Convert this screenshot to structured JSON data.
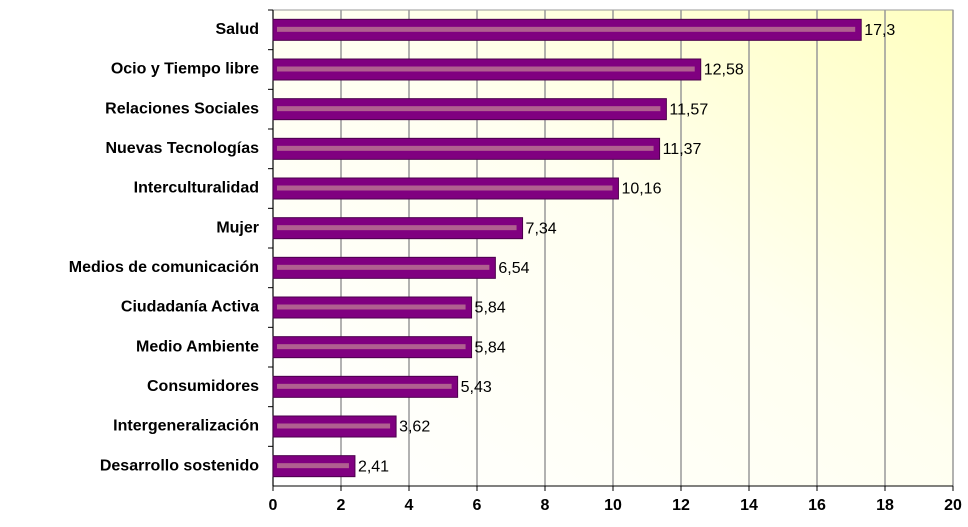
{
  "chart_data": {
    "type": "bar",
    "orientation": "horizontal",
    "categories": [
      "Salud",
      "Ocio y Tiempo libre",
      "Relaciones Sociales",
      "Nuevas Tecnologías",
      "Interculturalidad",
      "Mujer",
      "Medios de comunicación",
      "Ciudadanía Activa",
      "Medio Ambiente",
      "Consumidores",
      "Intergeneralización",
      "Desarrollo sostenido"
    ],
    "values": [
      17.3,
      12.58,
      11.57,
      11.37,
      10.16,
      7.34,
      6.54,
      5.84,
      5.84,
      5.43,
      3.62,
      2.41
    ],
    "value_labels": [
      "17,3",
      "12,58",
      "11,57",
      "11,37",
      "10,16",
      "7,34",
      "6,54",
      "5,84",
      "5,84",
      "5,43",
      "3,62",
      "2,41"
    ],
    "color": "#800080",
    "xlim": [
      0,
      20
    ],
    "xticks": [
      0,
      2,
      4,
      6,
      8,
      10,
      12,
      14,
      16,
      18,
      20
    ],
    "grid": true
  }
}
